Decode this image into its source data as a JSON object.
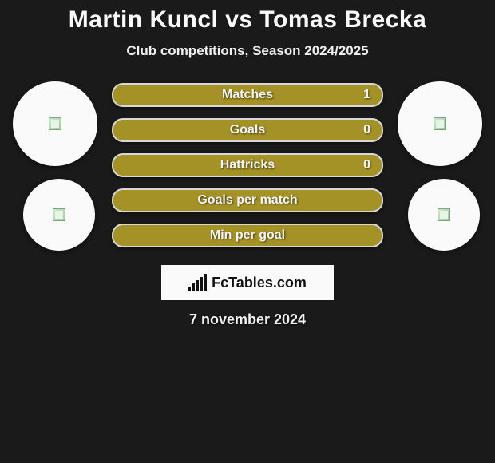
{
  "header": {
    "title": "Martin Kuncl vs Tomas Brecka",
    "subtitle": "Club competitions, Season 2024/2025"
  },
  "comparison": {
    "bar_background": "#a49226",
    "bar_border": "#d8d8d8",
    "rows": [
      {
        "label": "Matches",
        "value": "1"
      },
      {
        "label": "Goals",
        "value": "0"
      },
      {
        "label": "Hattricks",
        "value": "0"
      },
      {
        "label": "Goals per match",
        "value": ""
      },
      {
        "label": "Min per goal",
        "value": ""
      }
    ]
  },
  "branding": {
    "icon": "bar-chart-icon",
    "text": "FcTables.com"
  },
  "footer": {
    "date": "7 november 2024"
  },
  "colors": {
    "page_bg": "#1a1a1a",
    "text": "#fafafa",
    "circle_bg": "#fafafa",
    "brand_bg": "#fafafa",
    "brand_text": "#111111"
  }
}
